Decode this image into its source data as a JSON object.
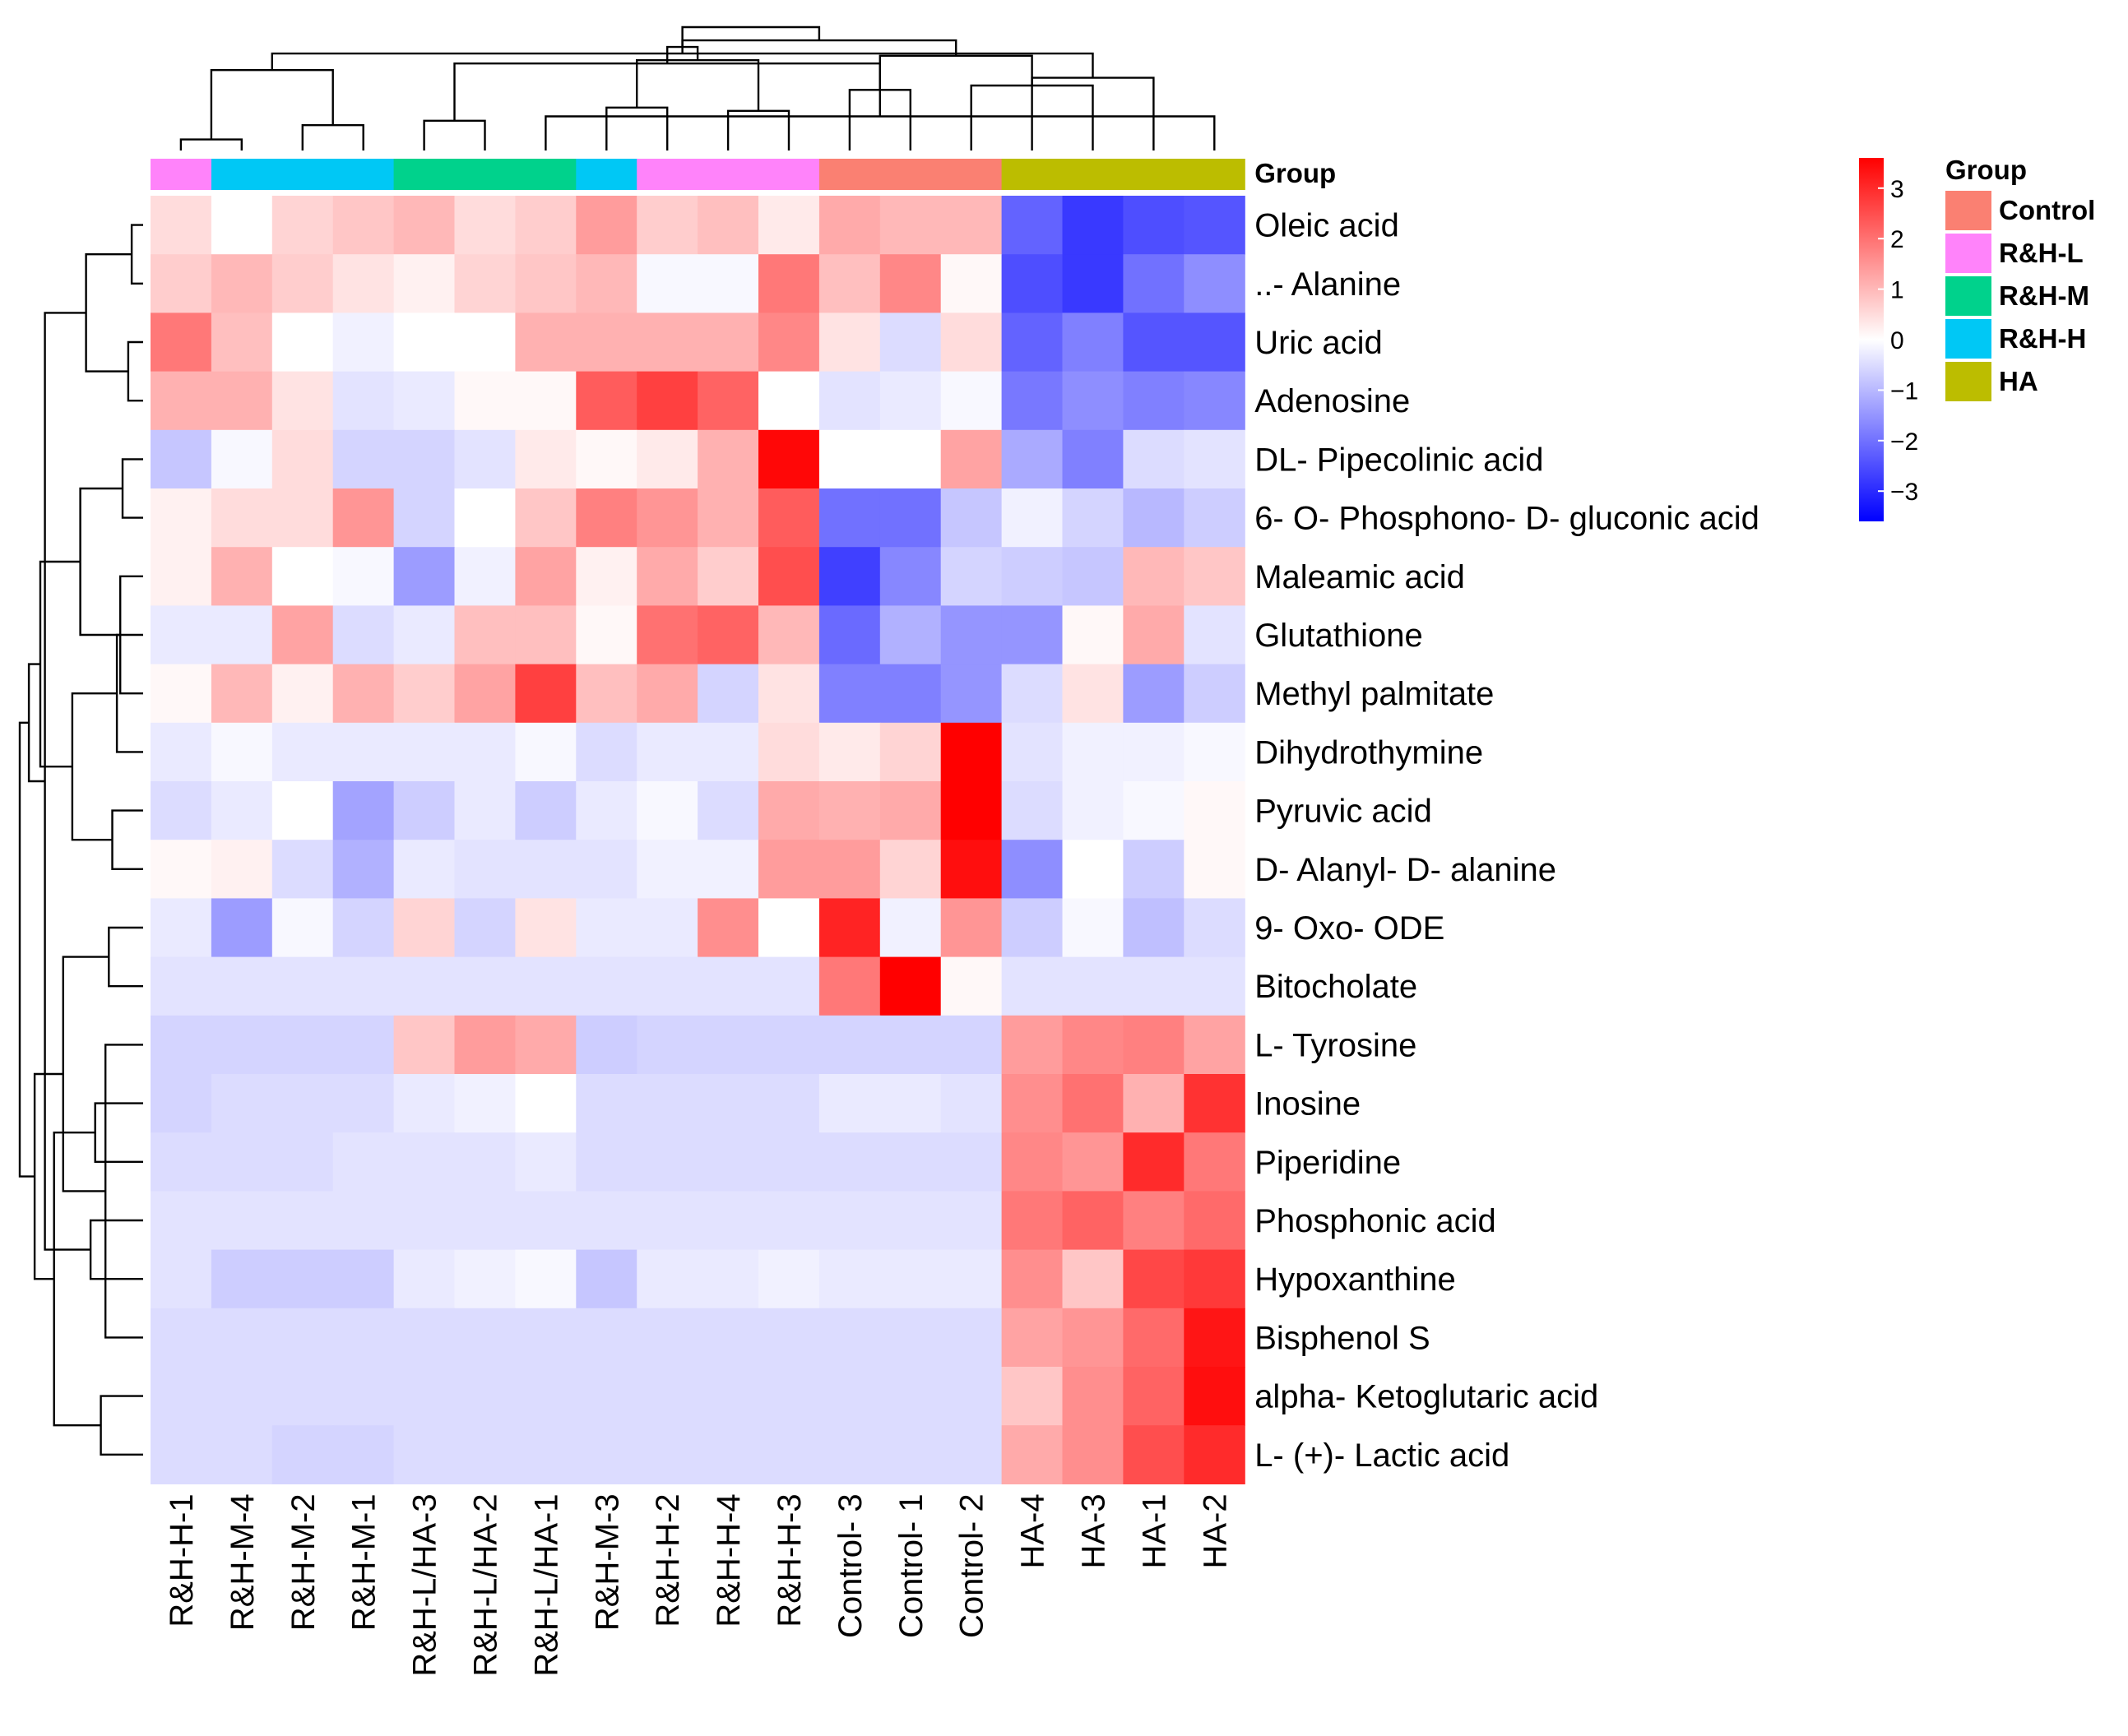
{
  "chart_data": {
    "type": "heatmap",
    "title": "",
    "rows": [
      "Oleic acid",
      "..- Alanine",
      "Uric acid",
      "Adenosine",
      "DL- Pipecolinic acid",
      "6- O- Phosphono- D- gluconic acid",
      "Maleamic acid",
      "Glutathione",
      "Methyl palmitate",
      "Dihydrothymine",
      "Pyruvic acid",
      "D- Alanyl- D- alanine",
      "9- Oxo- ODE",
      "Bitocholate",
      "L- Tyrosine",
      "Inosine",
      "Piperidine",
      "Phosphonic acid",
      "Hypoxanthine",
      "Bisphenol S",
      "alpha- Ketoglutaric acid",
      "L- (+)- Lactic acid"
    ],
    "columns": [
      "R&H-H-1",
      "R&H-M-4",
      "R&H-M-2",
      "R&H-M-1",
      "R&H-L/HA-3",
      "R&H-L/HA-2",
      "R&H-L/HA-1",
      "R&H-M-3",
      "R&H-H-2",
      "R&H-H-4",
      "R&H-H-3",
      "Control- 3",
      "Control- 1",
      "Control- 2",
      "HA-4",
      "HA-3",
      "HA-1",
      "HA-2"
    ],
    "column_groups": [
      "R&H-L",
      "R&H-H",
      "R&H-H",
      "R&H-H",
      "R&H-M",
      "R&H-M",
      "R&H-M",
      "R&H-H",
      "R&H-L",
      "R&H-L",
      "R&H-L",
      "Control",
      "Control",
      "Control",
      "HA",
      "HA",
      "HA",
      "HA"
    ],
    "values": [
      [
        0.5,
        0.0,
        0.6,
        0.8,
        1.0,
        0.5,
        0.7,
        1.4,
        0.7,
        0.9,
        0.3,
        1.2,
        1.0,
        1.0,
        -2.2,
        -2.8,
        -2.5,
        -2.4
      ],
      [
        0.7,
        1.0,
        0.7,
        0.4,
        0.2,
        0.6,
        0.8,
        1.0,
        -0.1,
        -0.1,
        1.9,
        0.9,
        1.7,
        0.1,
        -2.5,
        -2.8,
        -2.0,
        -1.6
      ],
      [
        1.9,
        0.9,
        0.0,
        -0.2,
        0.0,
        0.0,
        1.1,
        1.1,
        1.1,
        1.1,
        1.7,
        0.4,
        -0.5,
        0.5,
        -2.2,
        -1.8,
        -2.4,
        -2.4
      ],
      [
        1.1,
        1.1,
        0.4,
        -0.4,
        -0.3,
        0.1,
        0.1,
        2.3,
        2.7,
        2.2,
        0.0,
        -0.4,
        -0.3,
        -0.1,
        -1.9,
        -1.6,
        -1.8,
        -1.7
      ],
      [
        -0.8,
        -0.1,
        0.5,
        -0.6,
        -0.6,
        -0.4,
        0.3,
        0.1,
        0.3,
        1.1,
        3.5,
        0.0,
        0.0,
        1.3,
        -1.2,
        -1.8,
        -0.5,
        -0.4
      ],
      [
        0.2,
        0.5,
        0.5,
        1.5,
        -0.6,
        0.0,
        0.8,
        1.8,
        1.5,
        1.1,
        2.3,
        -2.0,
        -2.0,
        -0.8,
        -0.2,
        -0.6,
        -1.0,
        -0.7
      ],
      [
        0.2,
        1.1,
        0.0,
        -0.1,
        -1.4,
        -0.2,
        1.3,
        0.2,
        1.2,
        0.7,
        2.5,
        -2.7,
        -1.7,
        -0.6,
        -0.7,
        -0.8,
        1.0,
        0.8
      ],
      [
        -0.3,
        -0.3,
        1.3,
        -0.5,
        -0.3,
        0.9,
        0.9,
        0.1,
        2.0,
        2.2,
        1.0,
        -2.1,
        -1.1,
        -1.5,
        -1.5,
        0.1,
        1.2,
        -0.4
      ],
      [
        0.1,
        1.0,
        0.2,
        1.1,
        0.7,
        1.3,
        2.7,
        0.9,
        1.2,
        -0.6,
        0.4,
        -1.8,
        -1.8,
        -1.5,
        -0.5,
        0.4,
        -1.4,
        -0.7
      ],
      [
        -0.3,
        -0.1,
        -0.3,
        -0.3,
        -0.3,
        -0.3,
        -0.1,
        -0.5,
        -0.3,
        -0.3,
        0.5,
        0.3,
        0.6,
        3.9,
        -0.4,
        -0.2,
        -0.2,
        -0.1
      ],
      [
        -0.5,
        -0.3,
        0.0,
        -1.3,
        -0.7,
        -0.3,
        -0.7,
        -0.3,
        -0.1,
        -0.5,
        1.2,
        1.1,
        1.2,
        3.7,
        -0.5,
        -0.2,
        -0.1,
        0.1
      ],
      [
        0.1,
        0.2,
        -0.5,
        -1.1,
        -0.3,
        -0.4,
        -0.4,
        -0.4,
        -0.2,
        -0.2,
        1.4,
        1.4,
        0.6,
        3.4,
        -1.6,
        0.0,
        -0.7,
        0.1
      ],
      [
        -0.3,
        -1.4,
        -0.1,
        -0.6,
        0.6,
        -0.6,
        0.4,
        -0.3,
        -0.3,
        1.6,
        0.0,
        3.1,
        -0.2,
        1.5,
        -0.7,
        -0.1,
        -0.9,
        -0.5
      ],
      [
        -0.4,
        -0.4,
        -0.4,
        -0.4,
        -0.4,
        -0.4,
        -0.4,
        -0.4,
        -0.4,
        -0.4,
        -0.4,
        1.9,
        3.9,
        0.1,
        -0.4,
        -0.4,
        -0.4,
        -0.4
      ],
      [
        -0.6,
        -0.6,
        -0.6,
        -0.6,
        0.8,
        1.4,
        1.2,
        -0.7,
        -0.6,
        -0.6,
        -0.6,
        -0.6,
        -0.6,
        -0.6,
        1.4,
        1.7,
        1.8,
        1.3
      ],
      [
        -0.6,
        -0.5,
        -0.5,
        -0.5,
        -0.3,
        -0.2,
        0.0,
        -0.5,
        -0.5,
        -0.5,
        -0.5,
        -0.3,
        -0.3,
        -0.4,
        1.6,
        2.0,
        1.1,
        2.9
      ],
      [
        -0.5,
        -0.5,
        -0.5,
        -0.4,
        -0.4,
        -0.4,
        -0.3,
        -0.5,
        -0.5,
        -0.5,
        -0.5,
        -0.5,
        -0.5,
        -0.5,
        1.7,
        1.5,
        3.0,
        1.9
      ],
      [
        -0.4,
        -0.4,
        -0.4,
        -0.4,
        -0.4,
        -0.4,
        -0.4,
        -0.4,
        -0.4,
        -0.4,
        -0.4,
        -0.4,
        -0.4,
        -0.4,
        1.9,
        2.2,
        1.8,
        2.1
      ],
      [
        -0.4,
        -0.7,
        -0.7,
        -0.7,
        -0.3,
        -0.2,
        -0.1,
        -0.8,
        -0.3,
        -0.3,
        -0.2,
        -0.3,
        -0.3,
        -0.3,
        1.6,
        0.8,
        2.6,
        2.8
      ],
      [
        -0.5,
        -0.5,
        -0.5,
        -0.5,
        -0.5,
        -0.5,
        -0.5,
        -0.5,
        -0.5,
        -0.5,
        -0.5,
        -0.5,
        -0.5,
        -0.5,
        1.3,
        1.5,
        2.1,
        3.3
      ],
      [
        -0.5,
        -0.5,
        -0.5,
        -0.5,
        -0.5,
        -0.5,
        -0.5,
        -0.5,
        -0.5,
        -0.5,
        -0.5,
        -0.5,
        -0.5,
        -0.5,
        0.8,
        1.6,
        2.2,
        3.4
      ],
      [
        -0.5,
        -0.5,
        -0.6,
        -0.6,
        -0.5,
        -0.5,
        -0.5,
        -0.5,
        -0.5,
        -0.5,
        -0.5,
        -0.5,
        -0.5,
        -0.5,
        1.2,
        1.6,
        2.5,
        3.0
      ]
    ],
    "color_scale": {
      "min": -3.6,
      "max": 3.6,
      "low_color": "#0000ff",
      "mid_color": "#ffffff",
      "high_color": "#ff0000",
      "ticks": [
        3,
        2,
        1,
        0,
        -1,
        -2,
        -3
      ]
    },
    "annotation_track": "Group",
    "groups": [
      {
        "name": "Control",
        "color": "#fa8072"
      },
      {
        "name": "R&H-L",
        "color": "#ff83fa"
      },
      {
        "name": "R&H-M",
        "color": "#00d28c"
      },
      {
        "name": "R&H-H",
        "color": "#00c8f5"
      },
      {
        "name": "HA",
        "color": "#bcbd00"
      }
    ],
    "legend_title": "Group",
    "legend_position": "right",
    "col_dendrogram_merges": [
      [
        0,
        1,
        0.1
      ],
      [
        2,
        3,
        0.23
      ],
      [
        4,
        5,
        0.27
      ],
      [
        6,
        7,
        0.31
      ],
      [
        8,
        9,
        0.36
      ],
      [
        10,
        11,
        0.39
      ],
      [
        12,
        13,
        0.55
      ],
      [
        14,
        15,
        0.59
      ],
      [
        16,
        17,
        0.66
      ],
      [
        18,
        19,
        0.73
      ],
      [
        20,
        21,
        0.79
      ],
      [
        22,
        23,
        0.82
      ],
      [
        24,
        25,
        0.86
      ],
      [
        26,
        27,
        0.88
      ],
      [
        28,
        29,
        0.94
      ],
      [
        30,
        31,
        1.0
      ],
      [
        32,
        33,
        1.12
      ]
    ],
    "col_dendrogram_leaf_ids": [
      0,
      1,
      3,
      2,
      5,
      4,
      6,
      11,
      10,
      8,
      9,
      12,
      13,
      14,
      16,
      15,
      17,
      7
    ],
    "row_dendrogram_merges": [
      [
        0,
        1,
        0.1
      ],
      [
        2,
        3,
        0.13
      ],
      [
        4,
        5,
        0.18
      ],
      [
        6,
        7,
        0.2
      ],
      [
        8,
        9,
        0.23
      ],
      [
        10,
        11,
        0.27
      ],
      [
        12,
        13,
        0.3
      ],
      [
        14,
        15,
        0.33
      ],
      [
        16,
        17,
        0.37
      ],
      [
        18,
        19,
        0.42
      ],
      [
        20,
        21,
        0.46
      ],
      [
        22,
        23,
        0.5
      ],
      [
        24,
        25,
        0.55
      ],
      [
        26,
        27,
        0.62
      ],
      [
        28,
        29,
        0.7
      ],
      [
        30,
        31,
        0.78
      ],
      [
        32,
        33,
        0.86
      ],
      [
        34,
        35,
        0.9
      ],
      [
        36,
        37,
        0.95
      ],
      [
        38,
        39,
        1.0
      ],
      [
        40,
        41,
        1.08
      ]
    ],
    "row_dendrogram_leaf_ids": [
      0,
      1,
      2,
      3,
      4,
      5,
      6,
      8,
      7,
      9,
      10,
      11,
      12,
      13,
      14,
      18,
      19,
      20,
      21,
      15,
      16,
      17
    ]
  }
}
